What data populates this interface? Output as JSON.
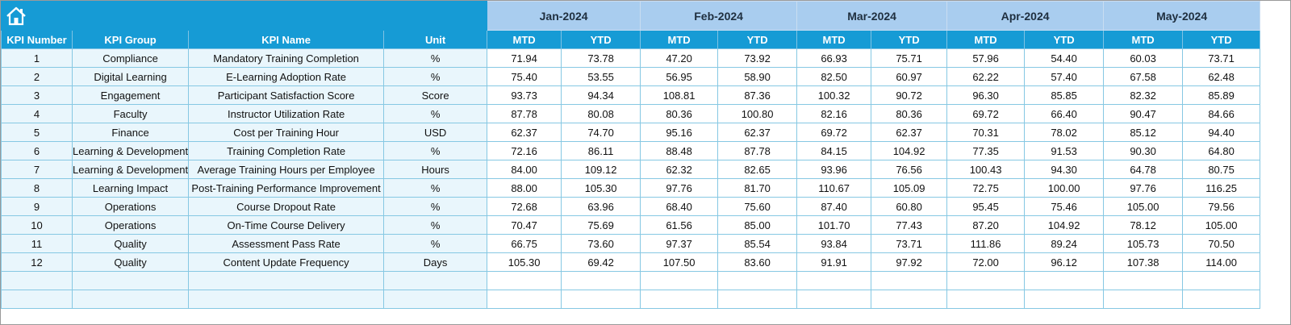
{
  "table": {
    "columns": [
      "KPI Number",
      "KPI Group",
      "KPI Name",
      "Unit"
    ],
    "months": [
      "Jan-2024",
      "Feb-2024",
      "Mar-2024",
      "Apr-2024",
      "May-2024"
    ],
    "subheaders": [
      "MTD",
      "YTD"
    ],
    "rows": [
      [
        "1",
        "Compliance",
        "Mandatory Training Completion",
        "%",
        "71.94",
        "73.78",
        "47.20",
        "73.92",
        "66.93",
        "75.71",
        "57.96",
        "54.40",
        "60.03",
        "73.71"
      ],
      [
        "2",
        "Digital Learning",
        "E-Learning Adoption Rate",
        "%",
        "75.40",
        "53.55",
        "56.95",
        "58.90",
        "82.50",
        "60.97",
        "62.22",
        "57.40",
        "67.58",
        "62.48"
      ],
      [
        "3",
        "Engagement",
        "Participant Satisfaction Score",
        "Score",
        "93.73",
        "94.34",
        "108.81",
        "87.36",
        "100.32",
        "90.72",
        "96.30",
        "85.85",
        "82.32",
        "85.89"
      ],
      [
        "4",
        "Faculty",
        "Instructor Utilization Rate",
        "%",
        "87.78",
        "80.08",
        "80.36",
        "100.80",
        "82.16",
        "80.36",
        "69.72",
        "66.40",
        "90.47",
        "84.66"
      ],
      [
        "5",
        "Finance",
        "Cost per Training Hour",
        "USD",
        "62.37",
        "74.70",
        "95.16",
        "62.37",
        "69.72",
        "62.37",
        "70.31",
        "78.02",
        "85.12",
        "94.40"
      ],
      [
        "6",
        "Learning & Development",
        "Training Completion Rate",
        "%",
        "72.16",
        "86.11",
        "88.48",
        "87.78",
        "84.15",
        "104.92",
        "77.35",
        "91.53",
        "90.30",
        "64.80"
      ],
      [
        "7",
        "Learning & Development",
        "Average Training Hours per Employee",
        "Hours",
        "84.00",
        "109.12",
        "62.32",
        "82.65",
        "93.96",
        "76.56",
        "100.43",
        "94.30",
        "64.78",
        "80.75"
      ],
      [
        "8",
        "Learning Impact",
        "Post-Training Performance Improvement",
        "%",
        "88.00",
        "105.30",
        "97.76",
        "81.70",
        "110.67",
        "105.09",
        "72.75",
        "100.00",
        "97.76",
        "116.25"
      ],
      [
        "9",
        "Operations",
        "Course Dropout Rate",
        "%",
        "72.68",
        "63.96",
        "68.40",
        "75.60",
        "87.40",
        "60.80",
        "95.45",
        "75.46",
        "105.00",
        "79.56"
      ],
      [
        "10",
        "Operations",
        "On-Time Course Delivery",
        "%",
        "70.47",
        "75.69",
        "61.56",
        "85.00",
        "101.70",
        "77.43",
        "87.20",
        "104.92",
        "78.12",
        "105.00"
      ],
      [
        "11",
        "Quality",
        "Assessment Pass Rate",
        "%",
        "66.75",
        "73.60",
        "97.37",
        "85.54",
        "93.84",
        "73.71",
        "111.86",
        "89.24",
        "105.73",
        "70.50"
      ],
      [
        "12",
        "Quality",
        "Content Update Frequency",
        "Days",
        "105.30",
        "69.42",
        "107.50",
        "83.60",
        "91.91",
        "97.92",
        "72.00",
        "96.12",
        "107.38",
        "114.00"
      ]
    ]
  }
}
